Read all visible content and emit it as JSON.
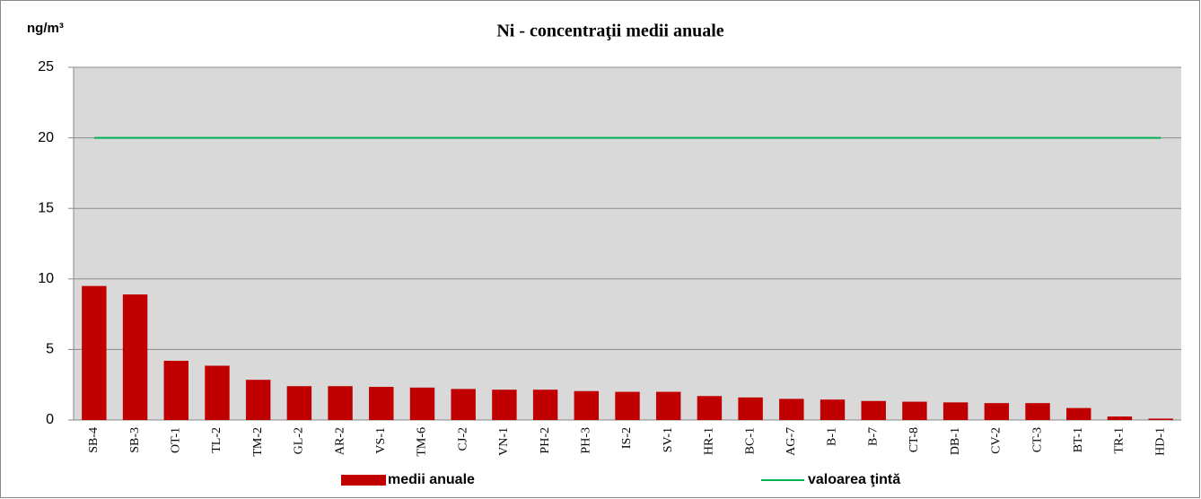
{
  "chart_data": {
    "type": "bar",
    "title": "Ni - concentraţii medii anuale",
    "y_label": "ng/m³",
    "categories": [
      "SB-4",
      "SB-3",
      "OT-1",
      "TL-2",
      "TM-2",
      "GL-2",
      "AR-2",
      "VS-1",
      "TM-6",
      "CJ-2",
      "VN-1",
      "PH-2",
      "PH-3",
      "IS-2",
      "SV-1",
      "HR-1",
      "BC-1",
      "AG-7",
      "B-1",
      "B-7",
      "CT-8",
      "DB-1",
      "CV-2",
      "CT-3",
      "BT-1",
      "TR-1",
      "HD-1"
    ],
    "series": [
      {
        "name": "medii anuale",
        "type": "bar",
        "color": "#c00000",
        "values": [
          9.5,
          8.9,
          4.2,
          3.85,
          2.85,
          2.4,
          2.4,
          2.35,
          2.3,
          2.2,
          2.15,
          2.15,
          2.05,
          2.0,
          2.0,
          1.7,
          1.6,
          1.5,
          1.45,
          1.35,
          1.3,
          1.25,
          1.2,
          1.2,
          0.85,
          0.25,
          0.1
        ]
      },
      {
        "name": "valoarea ţintă",
        "type": "line",
        "color": "#00b050",
        "values": [
          20,
          20,
          20,
          20,
          20,
          20,
          20,
          20,
          20,
          20,
          20,
          20,
          20,
          20,
          20,
          20,
          20,
          20,
          20,
          20,
          20,
          20,
          20,
          20,
          20,
          20,
          20
        ]
      }
    ],
    "ylim": [
      0,
      25
    ],
    "yticks": [
      0,
      5,
      10,
      15,
      20,
      25
    ],
    "grid": true,
    "legend": "bottom"
  }
}
